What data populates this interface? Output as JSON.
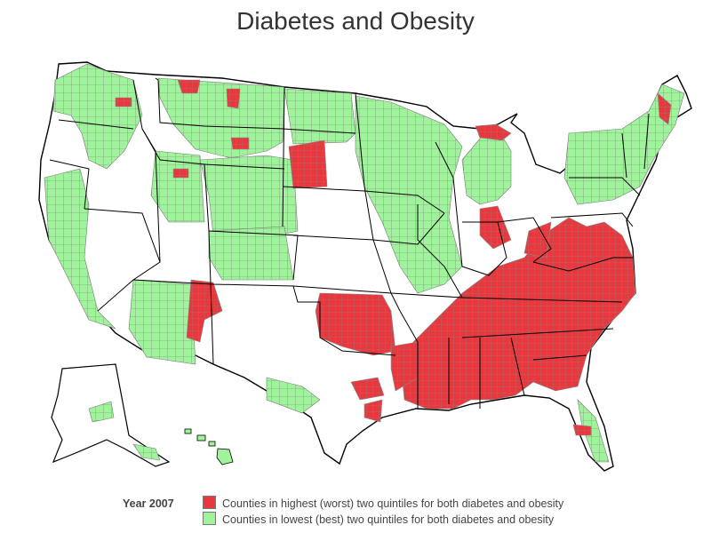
{
  "title": "Diabetes and Obesity",
  "legend": {
    "year_label": "Year 2007",
    "items": [
      {
        "label": "Counties in highest (worst) two quintiles for both diabetes and obesity",
        "color": "#e8383d"
      },
      {
        "label": "Counties in lowest (best) two quintiles for both diabetes and obesity",
        "color": "#9ff39b"
      }
    ]
  },
  "colors": {
    "outline": "#000000",
    "county_border": "#7a7a7a",
    "land": "#ffffff"
  }
}
